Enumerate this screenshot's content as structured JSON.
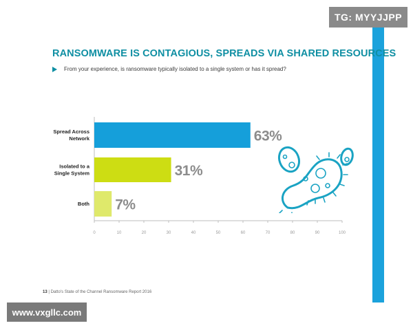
{
  "watermarks": {
    "tg": "TG: MYYJJPP",
    "url": "www.vxgllc.com"
  },
  "colors": {
    "title": "#0f8fa3",
    "accent_strip": "#1ba2dc",
    "bar_network": "#159fda",
    "bar_isolated": "#cddd13",
    "bar_both": "#dfe96b",
    "value_label": "#8c8c8c",
    "axis": "#bdbdbd"
  },
  "title": "RANSOMWARE IS CONTAGIOUS, SPREADS VIA SHARED RESOURCES",
  "question": "From your experience, is ransomware typically isolated to a single system or has it spread?",
  "footer": {
    "page_number": "13",
    "source": "Datto's State of the Channel Ransomware Report 2016"
  },
  "decoration_icon": "bacteria-icon",
  "chart_data": {
    "type": "bar",
    "orientation": "horizontal",
    "categories": [
      "Spread Across Network",
      "Isolated to a Single System",
      "Both"
    ],
    "category_lines": [
      [
        "Spread Across",
        "Network"
      ],
      [
        "Isolated to a",
        "Single System"
      ],
      [
        "Both"
      ]
    ],
    "values": [
      63,
      31,
      7
    ],
    "value_labels": [
      "63%",
      "31%",
      "7%"
    ],
    "xlim": [
      0,
      100
    ],
    "xticks": [
      "0",
      "10",
      "20",
      "30",
      "40",
      "50",
      "60",
      "70",
      "80",
      "90",
      "100"
    ],
    "title": "",
    "xlabel": "",
    "ylabel": "",
    "grid": false,
    "legend": "none"
  }
}
